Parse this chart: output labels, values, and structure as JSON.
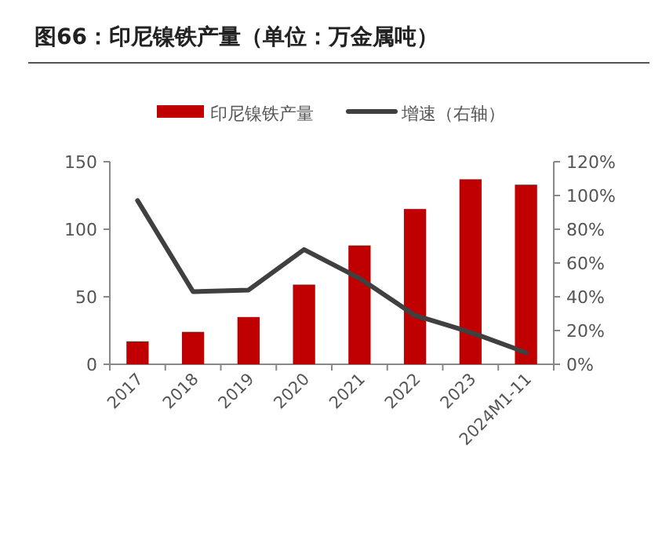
{
  "chart_data": {
    "type": "bar",
    "title": "图66：印尼镍铁产量（单位：万金属吨）",
    "categories": [
      "2017",
      "2018",
      "2019",
      "2020",
      "2021",
      "2022",
      "2023",
      "2024M1-11"
    ],
    "series": [
      {
        "name": "印尼镍铁产量",
        "color": "#c00000",
        "values": [
          17,
          24,
          35,
          59,
          88,
          115,
          137,
          133
        ]
      },
      {
        "name": "增速（右轴）",
        "type": "line",
        "axis": "y2",
        "color": "#404040",
        "values": [
          97,
          43,
          44,
          68,
          51,
          29,
          19,
          7
        ]
      }
    ],
    "ylim": [
      0,
      150
    ],
    "yticks": [
      0,
      50,
      100,
      150
    ],
    "y2lim": [
      0,
      120
    ],
    "y2ticks": [
      {
        "value": 0,
        "label": "0%"
      },
      {
        "value": 20,
        "label": "20%"
      },
      {
        "value": 40,
        "label": "40%"
      },
      {
        "value": 60,
        "label": "60%"
      },
      {
        "value": 80,
        "label": "80%"
      },
      {
        "value": 100,
        "label": "100%"
      },
      {
        "value": 120,
        "label": "120%"
      }
    ],
    "legend": "top",
    "grid": false,
    "marker": "none",
    "line_style": "solid"
  }
}
